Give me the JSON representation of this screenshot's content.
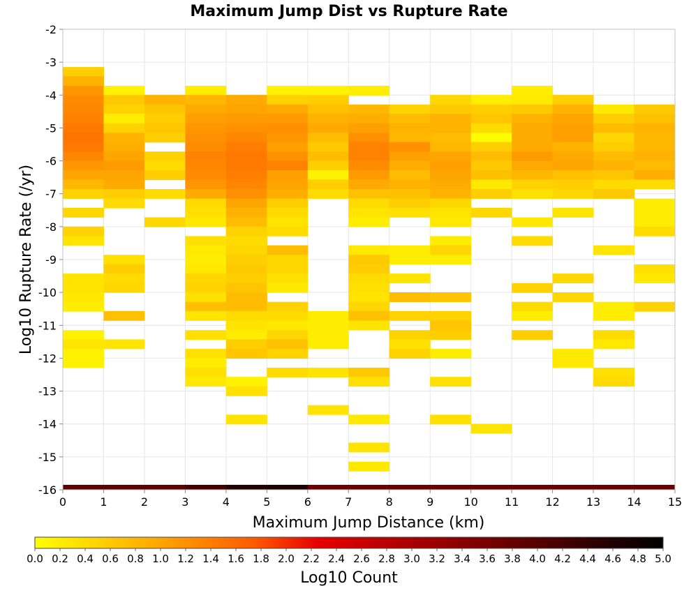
{
  "chart_data": {
    "type": "heatmap",
    "title": "Maximum Jump Dist vs Rupture Rate",
    "xlabel": "Maximum Jump Distance (km)",
    "ylabel": "Log10 Rupture Rate (/yr)",
    "colorbar_label": "Log10 Count",
    "xlim": [
      0,
      15
    ],
    "ylim": [
      -16,
      -2
    ],
    "x_ticks": [
      "0",
      "1",
      "2",
      "3",
      "4",
      "5",
      "6",
      "7",
      "8",
      "9",
      "10",
      "11",
      "12",
      "13",
      "14",
      "15"
    ],
    "y_ticks": [
      "-2",
      "-3",
      "-4",
      "-5",
      "-6",
      "-7",
      "-8",
      "-9",
      "-10",
      "-11",
      "-12",
      "-13",
      "-14",
      "-15",
      "-16"
    ],
    "colorbar_range": [
      0,
      5
    ],
    "colorbar_ticks": [
      "0.0",
      "0.2",
      "0.4",
      "0.6",
      "0.8",
      "1.0",
      "1.2",
      "1.4",
      "1.6",
      "1.8",
      "2.0",
      "2.2",
      "2.4",
      "2.6",
      "2.8",
      "3.0",
      "3.2",
      "3.4",
      "3.6",
      "3.8",
      "4.0",
      "4.2",
      "4.4",
      "4.6",
      "4.8",
      "5.0"
    ],
    "colormap": [
      "#ffff00",
      "#ffa500",
      "#ff5a00",
      "#e60000",
      "#960000",
      "#000000"
    ],
    "grid": true,
    "cell_height": 0.2857,
    "cells": [
      [
        0,
        -3.29,
        0.55
      ],
      [
        0,
        -3.57,
        0.85
      ],
      [
        0,
        -3.86,
        1.15
      ],
      [
        0,
        -4.14,
        1.25
      ],
      [
        0,
        -4.43,
        1.3
      ],
      [
        0,
        -4.71,
        1.35
      ],
      [
        0,
        -5.0,
        1.45
      ],
      [
        0,
        -5.29,
        1.5
      ],
      [
        0,
        -5.57,
        1.45
      ],
      [
        0,
        -5.86,
        1.3
      ],
      [
        0,
        -6.14,
        1.15
      ],
      [
        0,
        -6.43,
        1.0
      ],
      [
        0,
        -6.71,
        0.8
      ],
      [
        0,
        -7.0,
        0.5
      ],
      [
        0,
        -7.57,
        0.45
      ],
      [
        0,
        -8.14,
        0.5
      ],
      [
        0,
        -8.43,
        0.3
      ],
      [
        0,
        -9.57,
        0.3
      ],
      [
        0,
        -9.86,
        0.3
      ],
      [
        0,
        -10.14,
        0.25
      ],
      [
        0,
        -10.43,
        0.2
      ],
      [
        0,
        -11.29,
        0.15
      ],
      [
        0,
        -11.57,
        0.3
      ],
      [
        0,
        -11.86,
        0.15
      ],
      [
        0,
        -12.14,
        0.15
      ],
      [
        1,
        -3.86,
        0.15
      ],
      [
        1,
        -4.14,
        0.6
      ],
      [
        1,
        -4.43,
        0.5
      ],
      [
        1,
        -4.71,
        0.2
      ],
      [
        1,
        -5.0,
        0.5
      ],
      [
        1,
        -5.29,
        0.85
      ],
      [
        1,
        -5.57,
        0.9
      ],
      [
        1,
        -5.86,
        1.0
      ],
      [
        1,
        -6.14,
        1.1
      ],
      [
        1,
        -6.43,
        1.0
      ],
      [
        1,
        -6.71,
        0.95
      ],
      [
        1,
        -7.0,
        0.55
      ],
      [
        1,
        -7.29,
        0.4
      ],
      [
        1,
        -9.0,
        0.35
      ],
      [
        1,
        -9.29,
        0.55
      ],
      [
        1,
        -9.57,
        0.4
      ],
      [
        1,
        -9.86,
        0.45
      ],
      [
        1,
        -10.71,
        0.7
      ],
      [
        1,
        -11.57,
        0.3
      ],
      [
        2,
        -4.14,
        0.85
      ],
      [
        2,
        -4.43,
        0.65
      ],
      [
        2,
        -4.71,
        0.55
      ],
      [
        2,
        -5.0,
        0.65
      ],
      [
        2,
        -5.29,
        0.55
      ],
      [
        2,
        -5.86,
        0.5
      ],
      [
        2,
        -6.14,
        0.4
      ],
      [
        2,
        -6.43,
        0.55
      ],
      [
        2,
        -7.0,
        0.4
      ],
      [
        2,
        -7.86,
        0.45
      ],
      [
        3,
        -3.86,
        0.2
      ],
      [
        3,
        -4.14,
        0.8
      ],
      [
        3,
        -4.43,
        0.95
      ],
      [
        3,
        -4.71,
        1.05
      ],
      [
        3,
        -5.0,
        1.15
      ],
      [
        3,
        -5.29,
        1.2
      ],
      [
        3,
        -5.57,
        1.25
      ],
      [
        3,
        -5.86,
        1.35
      ],
      [
        3,
        -6.14,
        1.3
      ],
      [
        3,
        -6.43,
        1.25
      ],
      [
        3,
        -6.71,
        1.15
      ],
      [
        3,
        -7.0,
        0.95
      ],
      [
        3,
        -7.29,
        0.4
      ],
      [
        3,
        -7.57,
        0.35
      ],
      [
        3,
        -7.86,
        0.25
      ],
      [
        3,
        -8.43,
        0.35
      ],
      [
        3,
        -8.71,
        0.25
      ],
      [
        3,
        -9.0,
        0.2
      ],
      [
        3,
        -9.29,
        0.25
      ],
      [
        3,
        -9.57,
        0.45
      ],
      [
        3,
        -9.86,
        0.5
      ],
      [
        3,
        -10.14,
        0.35
      ],
      [
        3,
        -10.43,
        0.7
      ],
      [
        3,
        -10.71,
        0.3
      ],
      [
        3,
        -11.29,
        0.35
      ],
      [
        3,
        -11.86,
        0.35
      ],
      [
        3,
        -12.14,
        0.2
      ],
      [
        3,
        -12.43,
        0.35
      ],
      [
        3,
        -12.71,
        0.25
      ],
      [
        4,
        -4.14,
        0.95
      ],
      [
        4,
        -4.43,
        1.0
      ],
      [
        4,
        -4.71,
        1.1
      ],
      [
        4,
        -5.0,
        1.2
      ],
      [
        4,
        -5.29,
        1.3
      ],
      [
        4,
        -5.57,
        1.4
      ],
      [
        4,
        -5.86,
        1.45
      ],
      [
        4,
        -6.14,
        1.45
      ],
      [
        4,
        -6.43,
        1.4
      ],
      [
        4,
        -6.71,
        1.3
      ],
      [
        4,
        -7.0,
        1.2
      ],
      [
        4,
        -7.29,
        1.0
      ],
      [
        4,
        -7.57,
        0.85
      ],
      [
        4,
        -7.86,
        0.75
      ],
      [
        4,
        -8.14,
        0.5
      ],
      [
        4,
        -8.43,
        0.4
      ],
      [
        4,
        -8.71,
        0.45
      ],
      [
        4,
        -9.0,
        0.55
      ],
      [
        4,
        -9.29,
        0.6
      ],
      [
        4,
        -9.57,
        0.55
      ],
      [
        4,
        -9.86,
        0.65
      ],
      [
        4,
        -10.14,
        0.75
      ],
      [
        4,
        -10.43,
        0.75
      ],
      [
        4,
        -10.71,
        0.4
      ],
      [
        4,
        -11.0,
        0.3
      ],
      [
        4,
        -11.29,
        0.2
      ],
      [
        4,
        -11.57,
        0.55
      ],
      [
        4,
        -11.86,
        0.65
      ],
      [
        4,
        -12.71,
        0.15
      ],
      [
        4,
        -13.0,
        0.35
      ],
      [
        4,
        -13.86,
        0.3
      ],
      [
        5,
        -3.86,
        0.15
      ],
      [
        5,
        -4.14,
        0.5
      ],
      [
        5,
        -4.43,
        0.95
      ],
      [
        5,
        -4.71,
        1.1
      ],
      [
        5,
        -5.0,
        1.2
      ],
      [
        5,
        -5.29,
        1.15
      ],
      [
        5,
        -5.57,
        1.05
      ],
      [
        5,
        -5.86,
        1.2
      ],
      [
        5,
        -6.14,
        1.35
      ],
      [
        5,
        -6.43,
        1.05
      ],
      [
        5,
        -6.71,
        1.0
      ],
      [
        5,
        -7.0,
        0.9
      ],
      [
        5,
        -7.29,
        0.55
      ],
      [
        5,
        -7.57,
        0.4
      ],
      [
        5,
        -7.86,
        0.3
      ],
      [
        5,
        -8.14,
        0.4
      ],
      [
        5,
        -8.71,
        0.75
      ],
      [
        5,
        -9.0,
        0.45
      ],
      [
        5,
        -9.29,
        0.45
      ],
      [
        5,
        -9.57,
        0.35
      ],
      [
        5,
        -9.86,
        0.25
      ],
      [
        5,
        -10.43,
        0.5
      ],
      [
        5,
        -10.71,
        0.4
      ],
      [
        5,
        -11.0,
        0.25
      ],
      [
        5,
        -11.29,
        0.45
      ],
      [
        5,
        -11.57,
        0.7
      ],
      [
        5,
        -11.86,
        0.5
      ],
      [
        5,
        -12.43,
        0.4
      ],
      [
        6,
        -3.86,
        0.15
      ],
      [
        6,
        -4.14,
        0.55
      ],
      [
        6,
        -4.43,
        0.7
      ],
      [
        6,
        -4.71,
        0.85
      ],
      [
        6,
        -5.0,
        0.95
      ],
      [
        6,
        -5.29,
        0.75
      ],
      [
        6,
        -5.57,
        0.6
      ],
      [
        6,
        -5.86,
        0.75
      ],
      [
        6,
        -6.14,
        0.55
      ],
      [
        6,
        -6.43,
        0.15
      ],
      [
        6,
        -6.71,
        0.55
      ],
      [
        6,
        -7.0,
        0.4
      ],
      [
        6,
        -10.71,
        0.2
      ],
      [
        6,
        -11.0,
        0.2
      ],
      [
        6,
        -11.29,
        0.2
      ],
      [
        6,
        -11.57,
        0.2
      ],
      [
        6,
        -12.43,
        0.3
      ],
      [
        6,
        -13.57,
        0.3
      ],
      [
        7,
        -3.86,
        0.2
      ],
      [
        7,
        -4.43,
        0.8
      ],
      [
        7,
        -4.71,
        0.9
      ],
      [
        7,
        -5.0,
        1.05
      ],
      [
        7,
        -5.29,
        1.2
      ],
      [
        7,
        -5.57,
        1.35
      ],
      [
        7,
        -5.86,
        1.35
      ],
      [
        7,
        -6.14,
        1.25
      ],
      [
        7,
        -6.43,
        1.1
      ],
      [
        7,
        -6.71,
        0.95
      ],
      [
        7,
        -7.0,
        0.7
      ],
      [
        7,
        -7.29,
        0.4
      ],
      [
        7,
        -7.57,
        0.3
      ],
      [
        7,
        -7.86,
        0.2
      ],
      [
        7,
        -8.71,
        0.25
      ],
      [
        7,
        -9.0,
        0.6
      ],
      [
        7,
        -9.29,
        0.55
      ],
      [
        7,
        -9.57,
        0.4
      ],
      [
        7,
        -9.86,
        0.35
      ],
      [
        7,
        -10.14,
        0.3
      ],
      [
        7,
        -10.43,
        0.45
      ],
      [
        7,
        -10.71,
        0.7
      ],
      [
        7,
        -11.0,
        0.3
      ],
      [
        7,
        -12.43,
        0.6
      ],
      [
        7,
        -12.71,
        0.35
      ],
      [
        7,
        -13.86,
        0.25
      ],
      [
        7,
        -14.71,
        0.3
      ],
      [
        7,
        -15.29,
        0.25
      ],
      [
        8,
        -4.43,
        0.5
      ],
      [
        8,
        -4.71,
        0.75
      ],
      [
        8,
        -5.0,
        0.85
      ],
      [
        8,
        -5.29,
        0.8
      ],
      [
        8,
        -5.57,
        1.2
      ],
      [
        8,
        -5.86,
        1.05
      ],
      [
        8,
        -6.14,
        0.9
      ],
      [
        8,
        -6.43,
        0.75
      ],
      [
        8,
        -6.71,
        0.85
      ],
      [
        8,
        -7.0,
        0.7
      ],
      [
        8,
        -7.29,
        0.55
      ],
      [
        8,
        -7.57,
        0.35
      ],
      [
        8,
        -8.71,
        0.2
      ],
      [
        8,
        -9.0,
        0.2
      ],
      [
        8,
        -9.57,
        0.3
      ],
      [
        8,
        -10.14,
        0.75
      ],
      [
        8,
        -10.71,
        0.5
      ],
      [
        8,
        -11.29,
        0.5
      ],
      [
        8,
        -11.57,
        0.35
      ],
      [
        8,
        -11.86,
        0.5
      ],
      [
        9,
        -4.14,
        0.45
      ],
      [
        9,
        -4.43,
        0.6
      ],
      [
        9,
        -4.71,
        0.85
      ],
      [
        9,
        -5.0,
        0.85
      ],
      [
        9,
        -5.29,
        0.75
      ],
      [
        9,
        -5.57,
        0.8
      ],
      [
        9,
        -5.86,
        1.0
      ],
      [
        9,
        -6.14,
        1.05
      ],
      [
        9,
        -6.43,
        1.0
      ],
      [
        9,
        -6.71,
        0.95
      ],
      [
        9,
        -7.0,
        0.85
      ],
      [
        9,
        -7.29,
        0.45
      ],
      [
        9,
        -7.57,
        0.3
      ],
      [
        9,
        -7.86,
        0.25
      ],
      [
        9,
        -8.43,
        0.2
      ],
      [
        9,
        -8.71,
        0.45
      ],
      [
        9,
        -9.0,
        0.2
      ],
      [
        9,
        -10.14,
        0.65
      ],
      [
        9,
        -10.71,
        0.5
      ],
      [
        9,
        -11.0,
        0.65
      ],
      [
        9,
        -11.29,
        0.55
      ],
      [
        9,
        -11.86,
        0.2
      ],
      [
        9,
        -12.71,
        0.35
      ],
      [
        9,
        -13.86,
        0.35
      ],
      [
        10,
        -4.14,
        0.2
      ],
      [
        10,
        -4.43,
        0.55
      ],
      [
        10,
        -4.71,
        0.65
      ],
      [
        10,
        -5.0,
        0.4
      ],
      [
        10,
        -5.29,
        0.05
      ],
      [
        10,
        -5.57,
        0.55
      ],
      [
        10,
        -5.86,
        0.75
      ],
      [
        10,
        -6.14,
        0.6
      ],
      [
        10,
        -6.43,
        0.7
      ],
      [
        10,
        -6.71,
        0.25
      ],
      [
        10,
        -7.0,
        0.55
      ],
      [
        10,
        -7.57,
        0.45
      ],
      [
        10,
        -14.14,
        0.3
      ],
      [
        11,
        -3.86,
        0.2
      ],
      [
        11,
        -4.14,
        0.25
      ],
      [
        11,
        -4.43,
        0.6
      ],
      [
        11,
        -4.71,
        0.85
      ],
      [
        11,
        -5.0,
        0.95
      ],
      [
        11,
        -5.29,
        0.95
      ],
      [
        11,
        -5.57,
        0.95
      ],
      [
        11,
        -5.86,
        1.1
      ],
      [
        11,
        -6.14,
        0.95
      ],
      [
        11,
        -6.43,
        0.8
      ],
      [
        11,
        -6.71,
        0.5
      ],
      [
        11,
        -7.0,
        0.35
      ],
      [
        11,
        -7.86,
        0.25
      ],
      [
        11,
        -8.43,
        0.4
      ],
      [
        11,
        -9.86,
        0.5
      ],
      [
        11,
        -10.43,
        0.4
      ],
      [
        11,
        -10.71,
        0.2
      ],
      [
        11,
        -11.29,
        0.55
      ],
      [
        12,
        -4.14,
        0.55
      ],
      [
        12,
        -4.43,
        0.85
      ],
      [
        12,
        -4.71,
        1.0
      ],
      [
        12,
        -5.0,
        1.05
      ],
      [
        12,
        -5.29,
        1.05
      ],
      [
        12,
        -5.57,
        0.85
      ],
      [
        12,
        -5.86,
        0.95
      ],
      [
        12,
        -6.14,
        1.0
      ],
      [
        12,
        -6.43,
        0.7
      ],
      [
        12,
        -6.71,
        0.55
      ],
      [
        12,
        -7.0,
        0.45
      ],
      [
        12,
        -7.57,
        0.3
      ],
      [
        12,
        -9.57,
        0.45
      ],
      [
        12,
        -10.14,
        0.45
      ],
      [
        12,
        -11.86,
        0.25
      ],
      [
        12,
        -12.14,
        0.25
      ],
      [
        13,
        -4.43,
        0.25
      ],
      [
        13,
        -4.71,
        0.55
      ],
      [
        13,
        -5.0,
        0.75
      ],
      [
        13,
        -5.29,
        0.45
      ],
      [
        13,
        -5.57,
        0.55
      ],
      [
        13,
        -5.86,
        0.75
      ],
      [
        13,
        -6.14,
        0.85
      ],
      [
        13,
        -6.43,
        0.65
      ],
      [
        13,
        -6.71,
        0.4
      ],
      [
        13,
        -7.0,
        0.6
      ],
      [
        13,
        -8.71,
        0.3
      ],
      [
        13,
        -10.43,
        0.2
      ],
      [
        13,
        -10.71,
        0.2
      ],
      [
        13,
        -11.29,
        0.4
      ],
      [
        13,
        -11.57,
        0.25
      ],
      [
        13,
        -12.43,
        0.35
      ],
      [
        13,
        -12.71,
        0.4
      ],
      [
        14,
        -4.43,
        0.6
      ],
      [
        14,
        -4.71,
        0.7
      ],
      [
        14,
        -5.0,
        0.85
      ],
      [
        14,
        -5.29,
        0.8
      ],
      [
        14,
        -5.57,
        0.8
      ],
      [
        14,
        -5.86,
        0.85
      ],
      [
        14,
        -6.14,
        0.75
      ],
      [
        14,
        -6.43,
        0.9
      ],
      [
        14,
        -6.71,
        0.4
      ],
      [
        14,
        -7.29,
        0.2
      ],
      [
        14,
        -7.57,
        0.2
      ],
      [
        14,
        -7.86,
        0.2
      ],
      [
        14,
        -8.14,
        0.4
      ],
      [
        14,
        -9.29,
        0.35
      ],
      [
        14,
        -9.57,
        0.25
      ],
      [
        14,
        -10.43,
        0.5
      ]
    ],
    "bottom_band": [
      [
        0,
        1,
        3.9
      ],
      [
        1,
        2,
        3.9
      ],
      [
        2,
        3,
        3.9
      ],
      [
        3,
        4,
        4.2
      ],
      [
        4,
        5,
        4.6
      ],
      [
        5,
        6,
        4.7
      ],
      [
        6,
        15,
        3.75
      ]
    ]
  }
}
